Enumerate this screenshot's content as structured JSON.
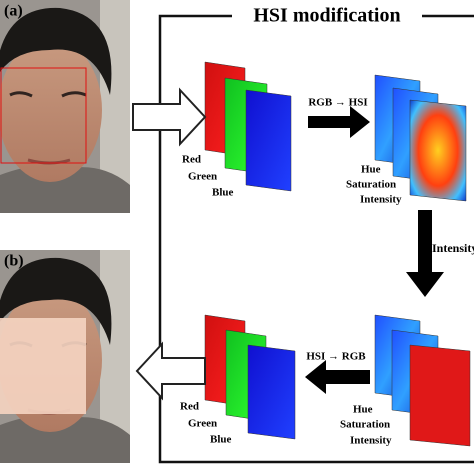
{
  "panels": {
    "a": {
      "label": "(a)"
    },
    "b": {
      "label": "(b)"
    }
  },
  "box": {
    "title": "HSI modification"
  },
  "steps": [
    {
      "label": "RGB → HSI"
    },
    {
      "label": "Intensity"
    },
    {
      "label": "HSI → RGB"
    }
  ],
  "stacks": [
    {
      "labels": [
        "Red",
        "Green",
        "Blue"
      ]
    },
    {
      "labels": [
        "Hue",
        "Saturation",
        "Intensity"
      ]
    },
    {
      "labels": [
        "Hue",
        "Saturation",
        "Intensity"
      ]
    },
    {
      "labels": [
        "Red",
        "Green",
        "Blue"
      ]
    }
  ]
}
